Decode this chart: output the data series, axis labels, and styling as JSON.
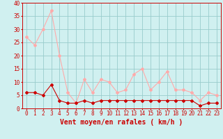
{
  "hours": [
    0,
    1,
    2,
    3,
    4,
    5,
    6,
    7,
    8,
    9,
    10,
    11,
    12,
    13,
    14,
    15,
    16,
    17,
    18,
    19,
    20,
    21,
    22,
    23
  ],
  "avg_wind": [
    6,
    6,
    5,
    9,
    3,
    2,
    2,
    3,
    2,
    3,
    3,
    3,
    3,
    3,
    3,
    3,
    3,
    3,
    3,
    3,
    3,
    1,
    2,
    2
  ],
  "gust_wind": [
    27,
    24,
    30,
    37,
    20,
    6,
    2,
    11,
    6,
    11,
    10,
    6,
    7,
    13,
    15,
    7,
    10,
    14,
    7,
    7,
    6,
    3,
    6,
    5
  ],
  "avg_color": "#cc0000",
  "gust_color": "#ffaaaa",
  "bg_color": "#d0f0f0",
  "grid_color": "#99cccc",
  "xlabel": "Vent moyen/en rafales ( km/h )",
  "ylim": [
    0,
    40
  ],
  "yticks": [
    0,
    5,
    10,
    15,
    20,
    25,
    30,
    35,
    40
  ],
  "tick_fontsize": 5.5,
  "xlabel_fontsize": 7
}
